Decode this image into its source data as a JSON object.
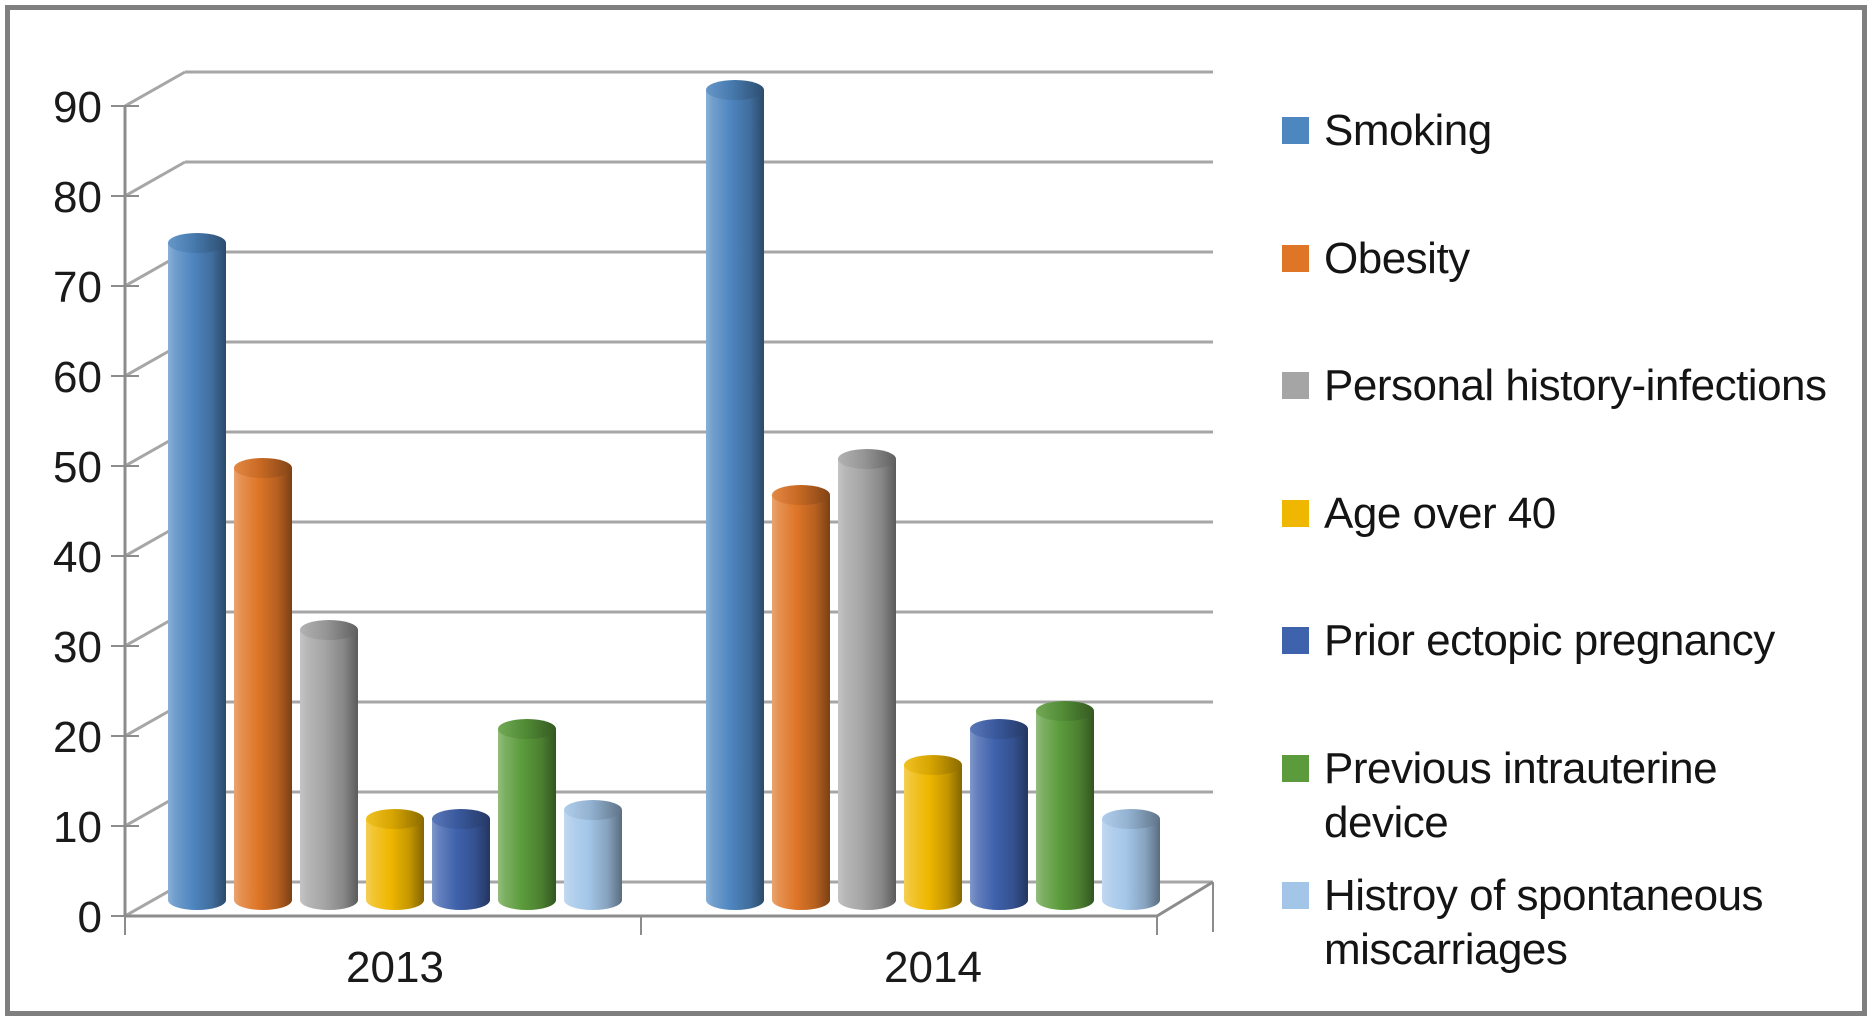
{
  "chart_data": {
    "type": "bar",
    "subtype": "3d-cylinder-column",
    "title": "",
    "xlabel": "",
    "ylabel": "",
    "grid": true,
    "legend_position": "right",
    "categories": [
      "2013",
      "2014"
    ],
    "series": [
      {
        "name": "Smoking",
        "color": "#4E86C0",
        "values": [
          73,
          90
        ]
      },
      {
        "name": "Obesity",
        "color": "#DE7527",
        "values": [
          48,
          45
        ]
      },
      {
        "name": "Personal history-infections",
        "color": "#A5A5A5",
        "values": [
          30,
          49
        ]
      },
      {
        "name": "Age over 40",
        "color": "#EFB700",
        "values": [
          9,
          15
        ]
      },
      {
        "name": "Prior ectopic pregnancy",
        "color": "#3F62AD",
        "values": [
          9,
          19
        ]
      },
      {
        "name": "Previous intrauterine device",
        "color": "#5B9B3B",
        "values": [
          19,
          21
        ]
      },
      {
        "name": "Histroy of spontaneous miscarriages",
        "color": "#A3C6E8",
        "values": [
          10,
          9
        ]
      }
    ],
    "yaxis": {
      "min": 0,
      "max": 90,
      "step": 10,
      "tick_labels": [
        "0",
        "10",
        "20",
        "30",
        "40",
        "50",
        "60",
        "70",
        "80",
        "90"
      ]
    },
    "colors": {
      "gridline": "#A6A6A6",
      "axis": "#8C8C8C",
      "frame_border": "#7F7F7F",
      "background": "#FFFFFF",
      "text": "#1A1A1A"
    }
  }
}
